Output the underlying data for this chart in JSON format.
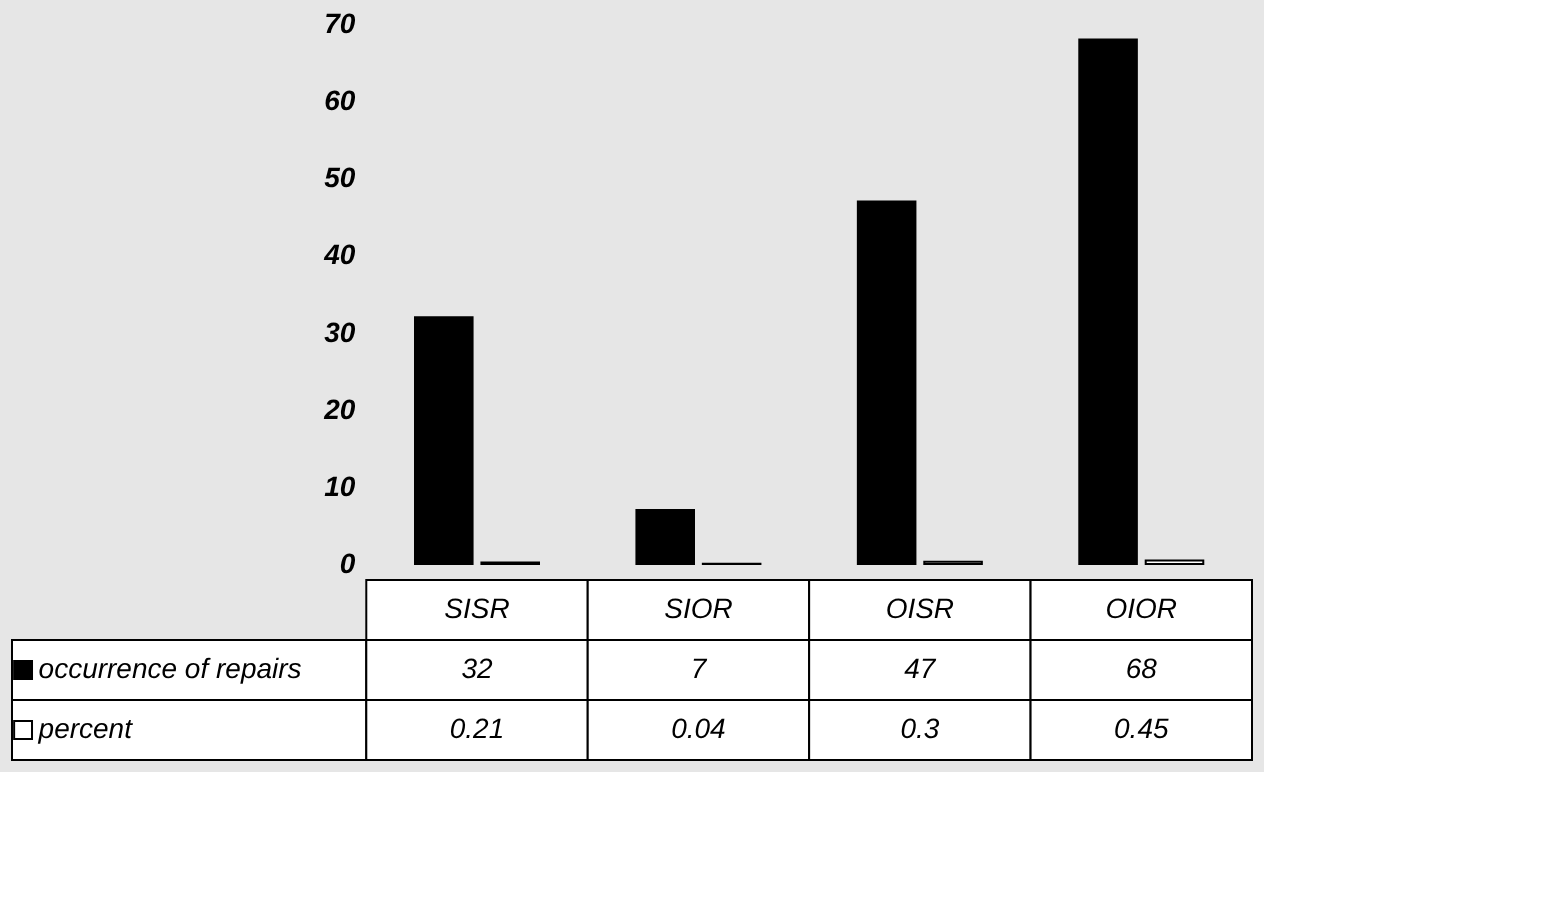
{
  "chart_data": {
    "type": "bar",
    "categories": [
      "SISR",
      "SIOR",
      "OISR",
      "OIOR"
    ],
    "series": [
      {
        "name": "occurrence of repairs",
        "color": "#000000",
        "values": [
          32,
          7,
          47,
          68
        ]
      },
      {
        "name": "percent",
        "color": "#ffffff",
        "values": [
          0.21,
          0.04,
          0.3,
          0.45
        ]
      }
    ],
    "ylim": [
      0,
      70
    ],
    "yticks": [
      0,
      10,
      20,
      30,
      40,
      50,
      60,
      70
    ],
    "grid": false,
    "legend": "bottom left",
    "data_labels": true
  }
}
